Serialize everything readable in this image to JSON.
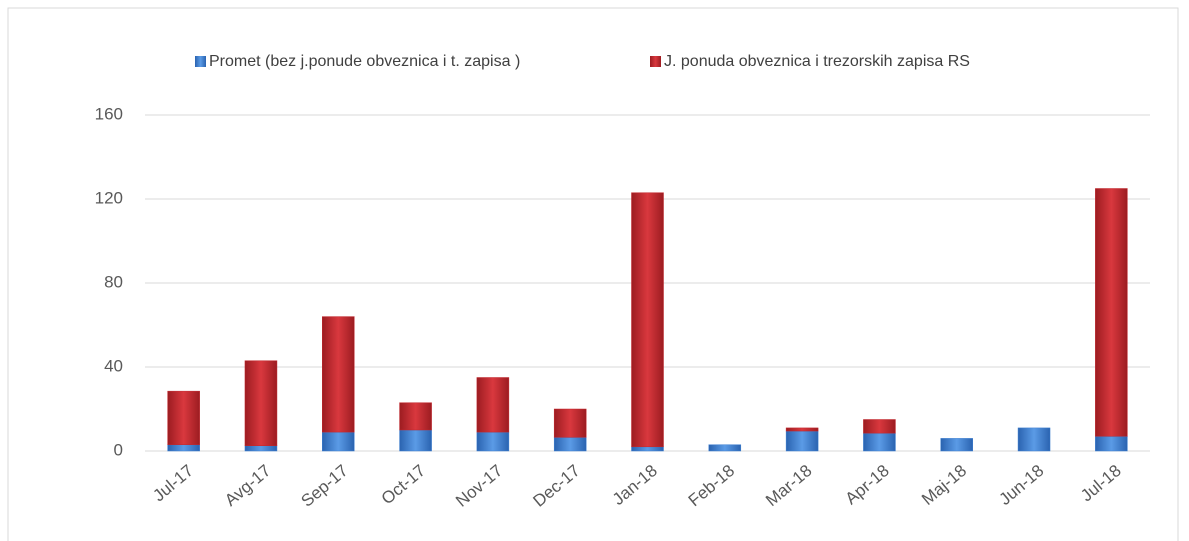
{
  "chart_data": {
    "type": "bar",
    "stacked": true,
    "categories": [
      "Jul-17",
      "Avg-17",
      "Sep-17",
      "Oct-17",
      "Nov-17",
      "Dec-17",
      "Jan-18",
      "Feb-18",
      "Mar-18",
      "Apr-18",
      "Maj-18",
      "Jun-18",
      "Jul-18"
    ],
    "series": [
      {
        "name": "Promet (bez j.ponude obveznica i t. zapisa )",
        "color": "#3d7fd1",
        "values": [
          3,
          2.5,
          9,
          10,
          9,
          6.5,
          2,
          3,
          9.5,
          8.5,
          6,
          11,
          7
        ]
      },
      {
        "name": "J. ponuda obveznica i trezorskih zapisa RS",
        "color": "#c1272d",
        "values": [
          25.5,
          40.5,
          55,
          13,
          26,
          13.5,
          121,
          0,
          1.5,
          6.5,
          0,
          0,
          118
        ]
      }
    ],
    "ylim": [
      0,
      160
    ],
    "yticks": [
      0,
      40,
      80,
      120,
      160
    ],
    "grid": true,
    "legend": "top"
  }
}
